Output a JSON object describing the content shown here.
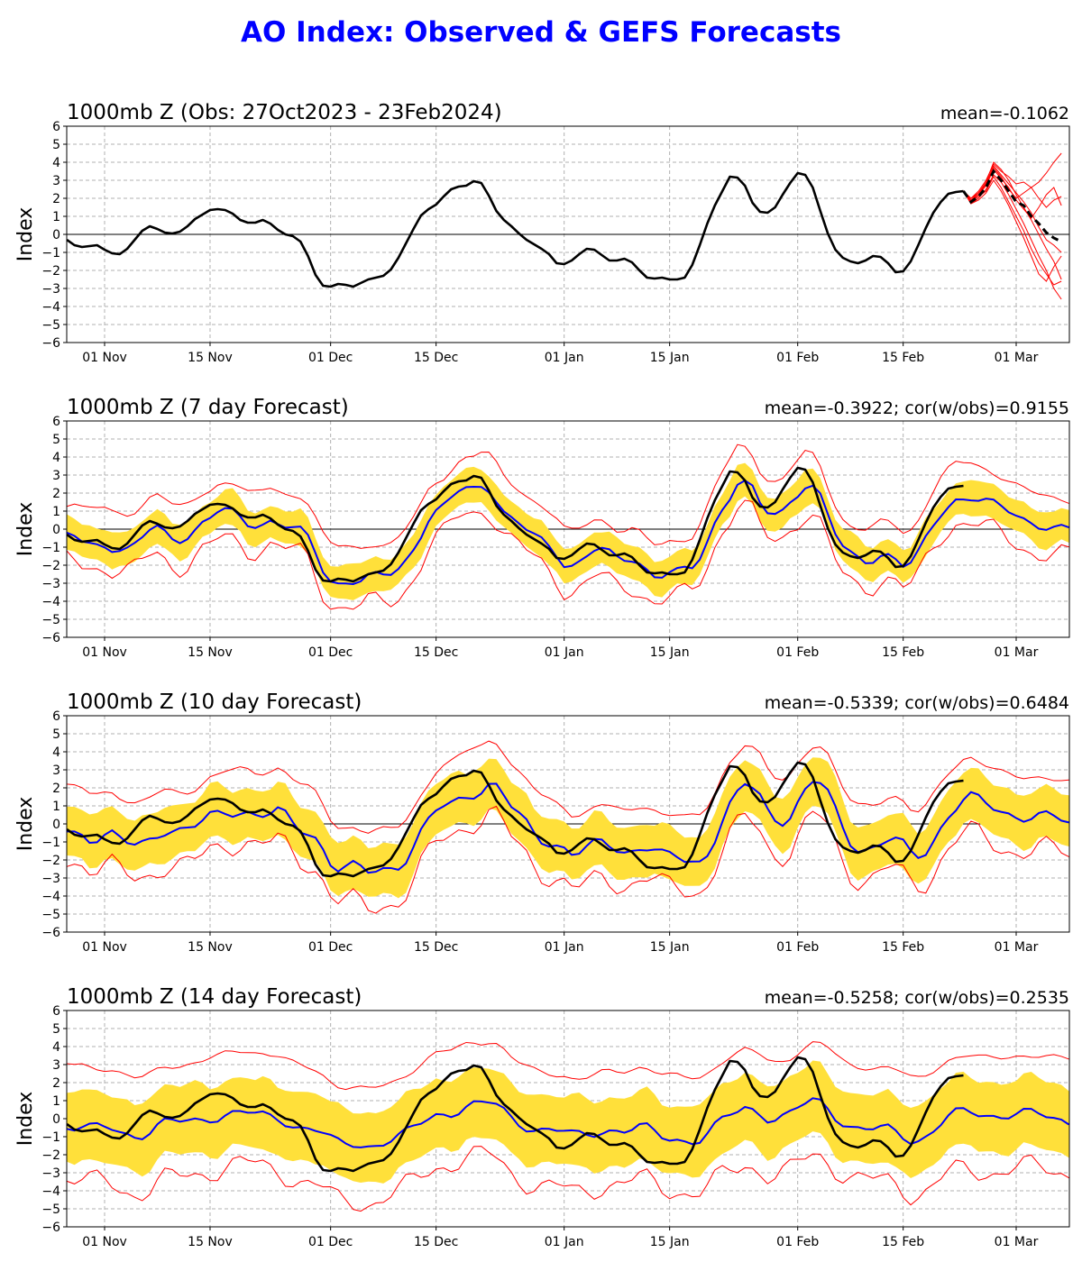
{
  "figure_title": "AO Index: Observed & GEFS Forecasts",
  "colors": {
    "title": "#0000ff",
    "observed": "#000000",
    "ens_mean": "#0000ff",
    "ens_spread": "#ffe03a",
    "ens_extremes": "#ff0000",
    "grid": "#b0b0b0"
  },
  "chart_data": [
    {
      "type": "line",
      "title": "1000mb Z (Obs: 27Oct2023 - 23Feb2024)",
      "stat": "mean=-0.1062",
      "ylabel": "Index",
      "ylim": [
        -6,
        6
      ],
      "yticks": [
        -6,
        -5,
        -4,
        -3,
        -2,
        -1,
        0,
        1,
        2,
        3,
        4,
        5,
        6
      ],
      "xticks": [
        "01 Nov",
        "15 Nov",
        "01 Dec",
        "15 Dec",
        "01 Jan",
        "15 Jan",
        "01 Feb",
        "15 Feb",
        "01 Mar"
      ],
      "grid": true,
      "observed": {
        "start": "2023-10-27",
        "values": [
          -0.3,
          -0.6,
          -0.7,
          -0.65,
          -0.6,
          -0.85,
          -1.05,
          -1.1,
          -0.8,
          -0.3,
          0.2,
          0.45,
          0.3,
          0.1,
          0.05,
          0.15,
          0.45,
          0.85,
          1.1,
          1.35,
          1.4,
          1.35,
          1.15,
          0.8,
          0.65,
          0.65,
          0.8,
          0.6,
          0.25,
          0.0,
          -0.1,
          -0.4,
          -1.2,
          -2.25,
          -2.85,
          -2.9,
          -2.75,
          -2.8,
          -2.9,
          -2.7,
          -2.5,
          -2.4,
          -2.3,
          -1.95,
          -1.3,
          -0.5,
          0.3,
          1.05,
          1.4,
          1.65,
          2.1,
          2.5,
          2.65,
          2.7,
          2.95,
          2.85,
          2.15,
          1.3,
          0.8,
          0.45,
          0.05,
          -0.3,
          -0.55,
          -0.8,
          -1.1,
          -1.6,
          -1.65,
          -1.45,
          -1.1,
          -0.8,
          -0.85,
          -1.15,
          -1.45,
          -1.45,
          -1.35,
          -1.55,
          -2.0,
          -2.4,
          -2.45,
          -2.4,
          -2.5,
          -2.5,
          -2.4,
          -1.7,
          -0.6,
          0.6,
          1.6,
          2.4,
          3.2,
          3.15,
          2.7,
          1.75,
          1.25,
          1.2,
          1.5,
          2.2,
          2.85,
          3.4,
          3.3,
          2.6,
          1.3,
          0.05,
          -0.85,
          -1.3,
          -1.5,
          -1.6,
          -1.45,
          -1.2,
          -1.25,
          -1.6,
          -2.1,
          -2.05,
          -1.5,
          -0.6,
          0.35,
          1.2,
          1.8,
          2.25,
          2.35,
          2.4
        ]
      },
      "forecast_ensemble_mean": {
        "start": "2024-02-23",
        "values": [
          2.4,
          1.8,
          2.1,
          2.6,
          3.5,
          3.0,
          2.4,
          1.8,
          1.6,
          1.0,
          0.6,
          0.1,
          -0.2,
          -0.4
        ]
      },
      "forecast_members": [
        [
          2.4,
          1.9,
          2.3,
          2.9,
          4.0,
          3.6,
          3.0,
          2.2,
          1.5,
          0.8,
          0.0,
          -0.8,
          -1.5,
          -2.5
        ],
        [
          2.4,
          1.7,
          2.0,
          2.5,
          3.3,
          2.9,
          2.2,
          1.4,
          0.6,
          -0.3,
          -1.2,
          -2.0,
          -3.0,
          -3.6
        ],
        [
          2.4,
          2.0,
          2.4,
          3.0,
          3.9,
          3.5,
          3.2,
          2.8,
          2.9,
          2.6,
          2.9,
          3.4,
          4.0,
          4.5
        ],
        [
          2.4,
          1.8,
          2.1,
          2.4,
          3.2,
          2.6,
          1.8,
          1.0,
          0.2,
          -0.8,
          -1.6,
          -2.2,
          -2.8,
          -2.6
        ],
        [
          2.4,
          1.9,
          2.2,
          2.8,
          3.7,
          3.2,
          2.5,
          2.0,
          2.3,
          2.6,
          2.0,
          1.5,
          1.9,
          2.1
        ],
        [
          2.4,
          1.7,
          1.9,
          2.3,
          3.0,
          2.4,
          1.6,
          0.7,
          -0.2,
          -1.2,
          -2.2,
          -2.6,
          -1.8,
          -1.2
        ],
        [
          2.4,
          1.8,
          2.2,
          2.7,
          3.6,
          3.1,
          2.6,
          1.9,
          1.4,
          0.9,
          1.5,
          2.2,
          2.6,
          1.6
        ],
        [
          2.4,
          2.0,
          2.3,
          2.8,
          3.8,
          3.3,
          2.8,
          2.3,
          1.8,
          1.2,
          0.4,
          -0.3,
          -0.6,
          -1.0
        ]
      ]
    },
    {
      "type": "line",
      "title": "1000mb Z (7 day Forecast)",
      "stat": "mean=-0.3922; cor(w/obs)=0.9155",
      "ylabel": "Index",
      "ylim": [
        -6,
        6
      ],
      "yticks": [
        -6,
        -5,
        -4,
        -3,
        -2,
        -1,
        0,
        1,
        2,
        3,
        4,
        5,
        6
      ],
      "xticks": [
        "01 Nov",
        "15 Nov",
        "01 Dec",
        "15 Dec",
        "01 Jan",
        "15 Jan",
        "01 Feb",
        "15 Feb",
        "01 Mar"
      ],
      "grid": true,
      "lead_days": 7,
      "spread": 0.8,
      "max_offset": 1.8,
      "min_offset": 1.4,
      "mean_noise": 0.45
    },
    {
      "type": "line",
      "title": "1000mb Z (10 day Forecast)",
      "stat": "mean=-0.5339; cor(w/obs)=0.6484",
      "ylabel": "Index",
      "ylim": [
        -6,
        6
      ],
      "yticks": [
        -6,
        -5,
        -4,
        -3,
        -2,
        -1,
        0,
        1,
        2,
        3,
        4,
        5,
        6
      ],
      "xticks": [
        "01 Nov",
        "15 Nov",
        "01 Dec",
        "15 Dec",
        "01 Jan",
        "15 Jan",
        "01 Feb",
        "15 Feb",
        "01 Mar"
      ],
      "grid": true,
      "lead_days": 10,
      "spread": 1.3,
      "max_offset": 2.3,
      "min_offset": 1.8,
      "mean_noise": 0.6
    },
    {
      "type": "line",
      "title": "1000mb Z (14 day Forecast)",
      "stat": "mean=-0.5258; cor(w/obs)=0.2535",
      "ylabel": "Index",
      "ylim": [
        -6,
        6
      ],
      "yticks": [
        -6,
        -5,
        -4,
        -3,
        -2,
        -1,
        0,
        1,
        2,
        3,
        4,
        5,
        6
      ],
      "xticks": [
        "01 Nov",
        "15 Nov",
        "01 Dec",
        "15 Dec",
        "01 Jan",
        "15 Jan",
        "01 Feb",
        "15 Feb",
        "01 Mar"
      ],
      "grid": true,
      "lead_days": 14,
      "spread": 1.8,
      "max_offset": 3.3,
      "min_offset": 3.0,
      "mean_noise": 0.5
    }
  ]
}
